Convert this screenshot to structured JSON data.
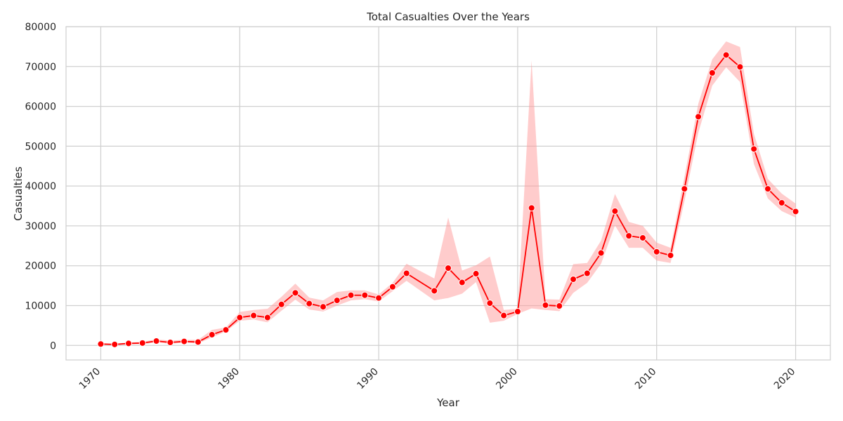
{
  "chart_data": {
    "type": "line",
    "title": "Total Casualties Over the Years",
    "xlabel": "Year",
    "ylabel": "Casualties",
    "xlim": [
      1967.5,
      2022.5
    ],
    "ylim": [
      -3650,
      80000
    ],
    "xticks": [
      1970,
      1980,
      1990,
      2000,
      2010,
      2020
    ],
    "yticks": [
      0,
      10000,
      20000,
      30000,
      40000,
      50000,
      60000,
      70000,
      80000
    ],
    "grid": true,
    "legend": "none",
    "colors": {
      "line": "#ff0000",
      "band": "#ff9999",
      "grid": "#d0d0d0",
      "marker_edge": "#ffffff"
    },
    "series": [
      {
        "x": [
          1970,
          1971,
          1972,
          1973,
          1974,
          1975,
          1976,
          1977,
          1978,
          1979,
          1980,
          1981,
          1982,
          1983,
          1984,
          1985,
          1986,
          1987,
          1988,
          1989,
          1990,
          1991,
          1992,
          1994,
          1995,
          1996,
          1997,
          1998,
          1999,
          2000,
          2001,
          2002,
          2003,
          2004,
          2005,
          2006,
          2007,
          2008,
          2009,
          2010,
          2011,
          2012,
          2013,
          2014,
          2015,
          2016,
          2017,
          2018,
          2019,
          2020
        ],
        "values": [
          350,
          250,
          500,
          600,
          1100,
          750,
          1000,
          850,
          2700,
          3900,
          7000,
          7500,
          7000,
          10300,
          13200,
          10500,
          9700,
          11300,
          12600,
          12600,
          11900,
          14700,
          18100,
          13700,
          19400,
          15800,
          18000,
          10600,
          7500,
          8500,
          34500,
          10100,
          9900,
          16600,
          18100,
          23200,
          33700,
          27500,
          27000,
          23500,
          22600,
          39300,
          57400,
          68400,
          72900,
          69900,
          49300,
          39300,
          35800,
          33600
        ],
        "ci_low": [
          150,
          50,
          300,
          300,
          800,
          400,
          700,
          500,
          2000,
          3500,
          6200,
          6500,
          5800,
          8700,
          11500,
          9000,
          8500,
          10000,
          11300,
          11600,
          11000,
          13600,
          16200,
          11300,
          11900,
          13000,
          15900,
          5700,
          6200,
          7900,
          9300,
          8900,
          8600,
          13200,
          15700,
          20500,
          30100,
          24500,
          24500,
          21300,
          20700,
          36200,
          53400,
          65200,
          69800,
          66100,
          45500,
          36900,
          33700,
          32100
        ],
        "ci_high": [
          550,
          450,
          700,
          900,
          1500,
          1200,
          1400,
          1400,
          3900,
          4500,
          8400,
          8900,
          9200,
          12200,
          15500,
          12000,
          11300,
          13400,
          13800,
          13800,
          12800,
          15700,
          20500,
          16800,
          32100,
          18800,
          20100,
          22300,
          8900,
          9200,
          71500,
          11600,
          11500,
          20400,
          20700,
          26300,
          38000,
          31000,
          30000,
          25800,
          24500,
          42300,
          60700,
          71800,
          76300,
          74900,
          53100,
          41800,
          38100,
          35600
        ]
      }
    ]
  }
}
